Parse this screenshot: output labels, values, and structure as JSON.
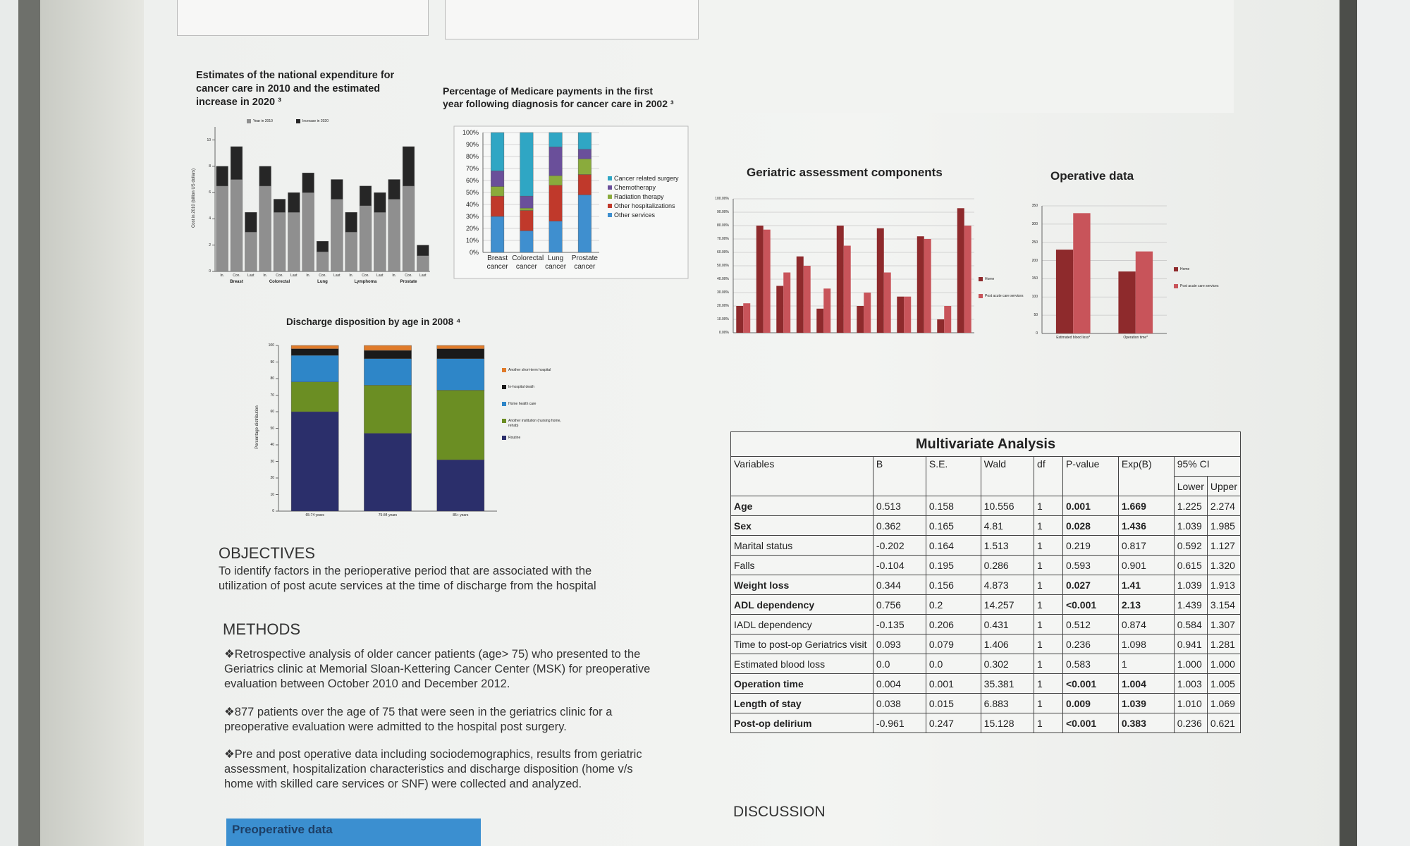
{
  "chart_data": [
    {
      "type": "stacked_bar",
      "title": "Estimates of the national expenditure for cancer care in 2010 and the estimated increase in 2020 ³",
      "ylabel": "Cost in 2010 (billion US dollars)",
      "categories": [
        "In.",
        "Con.",
        "Last",
        "In.",
        "Con.",
        "Last",
        "In.",
        "Con.",
        "Last",
        "In.",
        "Con.",
        "Last",
        "In.",
        "Con.",
        "Last"
      ],
      "groups": [
        "Breast",
        "Colorectal",
        "Lung",
        "Lymphoma",
        "Prostate"
      ],
      "series": [
        {
          "name": "Year in 2010",
          "color": "#8f8f8f",
          "values": [
            6.5,
            7,
            3,
            6.5,
            4.5,
            4.5,
            6,
            1.5,
            5.5,
            3,
            5,
            4.5,
            5.5,
            6.5,
            1.2
          ]
        },
        {
          "name": "Increase in 2020",
          "color": "#262626",
          "values": [
            1.5,
            2.5,
            1.5,
            1.5,
            1,
            1.5,
            1.5,
            0.8,
            1.5,
            1.5,
            1.5,
            1.5,
            1.5,
            3,
            0.8
          ]
        }
      ],
      "ylim": [
        0,
        11
      ],
      "yticks": [
        0,
        2,
        4,
        6,
        8,
        10
      ],
      "grid": false
    },
    {
      "type": "stacked_bar",
      "title": "Percentage of Medicare payments in the first year following diagnosis for cancer care in 2002 ³",
      "categories": [
        "Breast cancer",
        "Colorectal cancer",
        "Lung cancer",
        "Prostate cancer"
      ],
      "series": [
        {
          "name": "Other services",
          "color": "#3f8fcf",
          "values": [
            30,
            18,
            26,
            48
          ]
        },
        {
          "name": "Other hospitalizations",
          "color": "#c0392b",
          "values": [
            17,
            17,
            30,
            17
          ]
        },
        {
          "name": "Radiation therapy",
          "color": "#8aab3c",
          "values": [
            8,
            2,
            8,
            13
          ]
        },
        {
          "name": "Chemotherapy",
          "color": "#6a4f9a",
          "values": [
            13,
            10,
            24,
            8
          ]
        },
        {
          "name": "Cancer related surgery",
          "color": "#2fa6c4",
          "values": [
            32,
            53,
            12,
            14
          ]
        }
      ],
      "ylim": [
        0,
        100
      ],
      "yticks": [
        {
          "value": 0,
          "label": "0%"
        },
        {
          "value": 10,
          "label": "10%"
        },
        {
          "value": 20,
          "label": "20%"
        },
        {
          "value": 30,
          "label": "30%"
        },
        {
          "value": 40,
          "label": "40%"
        },
        {
          "value": 50,
          "label": "50%"
        },
        {
          "value": 60,
          "label": "60%"
        },
        {
          "value": 70,
          "label": "70%"
        },
        {
          "value": 80,
          "label": "80%"
        },
        {
          "value": 90,
          "label": "90%"
        },
        {
          "value": 100,
          "label": "100%"
        }
      ],
      "grid": true
    },
    {
      "type": "stacked_bar",
      "title": "Discharge disposition by age in 2008 ⁴",
      "ylabel": "Percentage distribution",
      "categories": [
        "65-74 years",
        "75-84 years",
        "85+ years"
      ],
      "series": [
        {
          "name": "Routine",
          "color": "#2b2f6b",
          "values": [
            60,
            47,
            31
          ]
        },
        {
          "name": "Another institution (nursing home, rehab)",
          "color": "#6b8e23",
          "values": [
            18,
            29,
            42
          ]
        },
        {
          "name": "Home health care",
          "color": "#2e86c8",
          "values": [
            16,
            16,
            19
          ]
        },
        {
          "name": "In-hospital death",
          "color": "#1a1a1a",
          "values": [
            4,
            5,
            6
          ]
        },
        {
          "name": "Another short-term hospital",
          "color": "#e07b2a",
          "values": [
            2,
            3,
            2
          ]
        }
      ],
      "ylim": [
        0,
        100
      ],
      "yticks": [
        0,
        10,
        20,
        30,
        40,
        50,
        60,
        70,
        80,
        90,
        100
      ],
      "grid": false
    },
    {
      "type": "bar",
      "title": "Geriatric assessment components",
      "categories": [
        null,
        null,
        null,
        null,
        null,
        null,
        null,
        null,
        null,
        null,
        null,
        null
      ],
      "series": [
        {
          "name": "Home",
          "color": "#8e2a2c",
          "values": [
            20,
            80,
            35,
            57,
            18,
            80,
            20,
            78,
            27,
            72,
            10,
            93
          ]
        },
        {
          "name": "Post acute care services",
          "color": "#c8545a",
          "values": [
            22,
            77,
            45,
            50,
            33,
            65,
            30,
            45,
            27,
            70,
            20,
            80
          ]
        }
      ],
      "ylim": [
        0,
        100
      ],
      "yticks": [
        {
          "value": 0,
          "label": "0.00%"
        },
        {
          "value": 10,
          "label": "10.00%"
        },
        {
          "value": 20,
          "label": "20.00%"
        },
        {
          "value": 30,
          "label": "30.00%"
        },
        {
          "value": 40,
          "label": "40.00%"
        },
        {
          "value": 50,
          "label": "50.00%"
        },
        {
          "value": 60,
          "label": "60.00%"
        },
        {
          "value": 70,
          "label": "70.00%"
        },
        {
          "value": 80,
          "label": "80.00%"
        },
        {
          "value": 90,
          "label": "90.00%"
        },
        {
          "value": 100,
          "label": "100.00%"
        }
      ],
      "grid": true
    },
    {
      "type": "bar",
      "title": "Operative data",
      "categories": [
        "Estimated blood loss*",
        "Operation time*"
      ],
      "series": [
        {
          "name": "Home",
          "color": "#8e2a2c",
          "values": [
            230,
            170
          ]
        },
        {
          "name": "Post acute care services",
          "color": "#c8545a",
          "values": [
            330,
            225
          ]
        }
      ],
      "ylim": [
        0,
        350
      ],
      "yticks": [
        0,
        50,
        100,
        150,
        200,
        250,
        300,
        350
      ],
      "grid": true
    }
  ],
  "poster": {
    "objectives": {
      "heading": "OBJECTIVES",
      "text": "To identify factors in the perioperative period that are associated with the utilization of post acute services at the time of discharge from the hospital"
    },
    "methods": {
      "heading": "METHODS",
      "bullets": [
        "❖Retrospective analysis of older cancer patients (age> 75) who presented to the Geriatrics clinic at Memorial Sloan-Kettering Cancer Center (MSK) for preoperative evaluation between October 2010 and December 2012.",
        "❖877 patients over the age of 75 that were seen in the geriatrics clinic for a preoperative evaluation were admitted to the hospital post surgery.",
        "❖Pre and post operative data including sociodemographics, results from geriatric assessment, hospitalization characteristics and discharge disposition (home v/s home with skilled care services or SNF) were collected and analyzed."
      ]
    },
    "preoperative": "Preoperative data",
    "discussion": "DISCUSSION",
    "table": {
      "title": "Multivariate Analysis",
      "header": [
        "Variables",
        "B",
        "S.E.",
        "Wald",
        "df",
        "P-value",
        "Exp(B)",
        "95% CI"
      ],
      "subheader": [
        "Lower",
        "Upper"
      ],
      "rows": [
        {
          "cells": [
            "Age",
            "0.513",
            "0.158",
            "10.556",
            "1",
            "0.001",
            "1.669",
            "1.225",
            "2.274"
          ],
          "bold": true
        },
        {
          "cells": [
            "Sex",
            "0.362",
            "0.165",
            "4.81",
            "1",
            "0.028",
            "1.436",
            "1.039",
            "1.985"
          ],
          "bold": true
        },
        {
          "cells": [
            "Marital status",
            "-0.202",
            "0.164",
            "1.513",
            "1",
            "0.219",
            "0.817",
            "0.592",
            "1.127"
          ],
          "bold": false
        },
        {
          "cells": [
            "Falls",
            "-0.104",
            "0.195",
            "0.286",
            "1",
            "0.593",
            "0.901",
            "0.615",
            "1.320"
          ],
          "bold": false
        },
        {
          "cells": [
            "Weight loss",
            "0.344",
            "0.156",
            "4.873",
            "1",
            "0.027",
            "1.41",
            "1.039",
            "1.913"
          ],
          "bold": true
        },
        {
          "cells": [
            "ADL dependency",
            "0.756",
            "0.2",
            "14.257",
            "1",
            "<0.001",
            "2.13",
            "1.439",
            "3.154"
          ],
          "bold": true
        },
        {
          "cells": [
            "IADL dependency",
            "-0.135",
            "0.206",
            "0.431",
            "1",
            "0.512",
            "0.874",
            "0.584",
            "1.307"
          ],
          "bold": false
        },
        {
          "cells": [
            "Time to post-op Geriatrics visit",
            "0.093",
            "0.079",
            "1.406",
            "1",
            "0.236",
            "1.098",
            "0.941",
            "1.281"
          ],
          "bold": false
        },
        {
          "cells": [
            "Estimated blood loss",
            "0.0",
            "0.0",
            "0.302",
            "1",
            "0.583",
            "1",
            "1.000",
            "1.000"
          ],
          "bold": false
        },
        {
          "cells": [
            "Operation time",
            "0.004",
            "0.001",
            "35.381",
            "1",
            "<0.001",
            "1.004",
            "1.003",
            "1.005"
          ],
          "bold": true
        },
        {
          "cells": [
            "Length of stay",
            "0.038",
            "0.015",
            "6.883",
            "1",
            "0.009",
            "1.039",
            "1.010",
            "1.069"
          ],
          "bold": true
        },
        {
          "cells": [
            "Post-op delirium",
            "-0.961",
            "0.247",
            "15.128",
            "1",
            "<0.001",
            "0.383",
            "0.236",
            "0.621"
          ],
          "bold": true
        }
      ]
    }
  }
}
